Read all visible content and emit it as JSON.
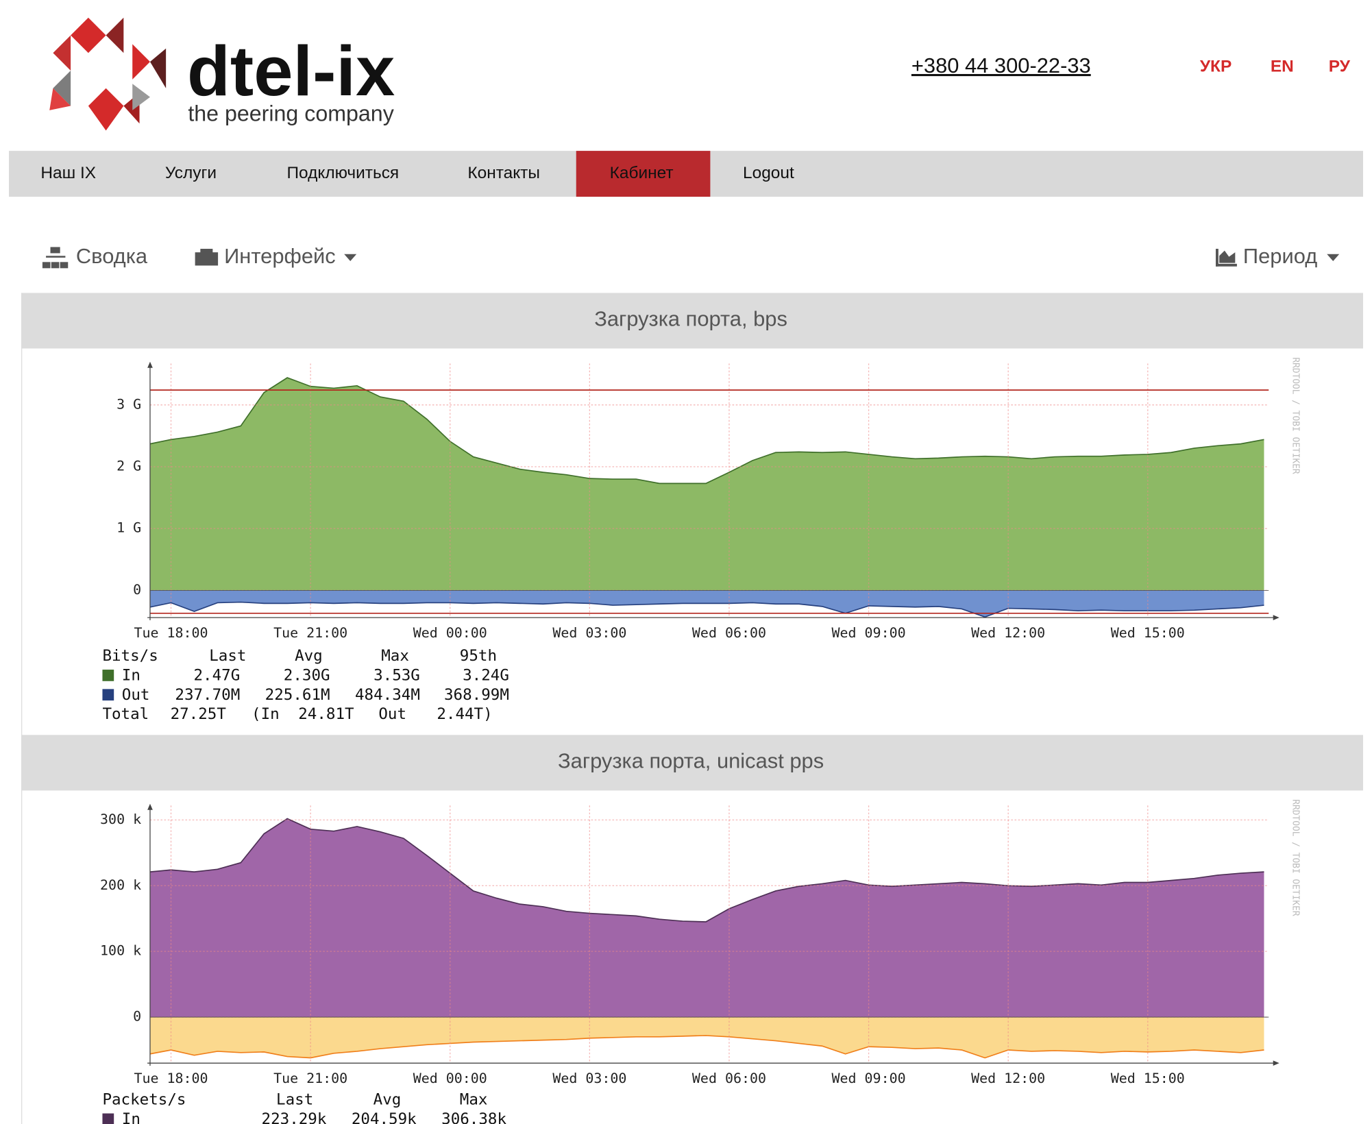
{
  "header": {
    "logo_text": "dtel-ix",
    "tagline": "the peering company",
    "phone": "+380 44 300-22-33",
    "languages": [
      "УКР",
      "EN",
      "РУ"
    ]
  },
  "nav": {
    "items": [
      "Наш IX",
      "Услуги",
      "Подключиться",
      "Контакты",
      "Кабинет",
      "Logout"
    ],
    "active": 4
  },
  "toolbar": {
    "summary": "Сводка",
    "interface": "Интерфейс",
    "period": "Период"
  },
  "chart_data": [
    {
      "type": "area",
      "title": "Загрузка порта, bps",
      "watermark": "RRDTOOL / TOBI OETIKER",
      "x": [
        -0.45,
        0,
        0.5,
        1,
        1.5,
        2,
        2.5,
        3,
        3.5,
        4,
        4.5,
        5,
        5.5,
        6,
        6.5,
        7,
        7.5,
        8,
        8.5,
        9,
        9.5,
        10,
        10.5,
        11,
        11.5,
        12,
        12.5,
        13,
        13.5,
        14,
        14.5,
        15,
        15.5,
        16,
        16.5,
        17,
        17.5,
        18,
        18.5,
        19,
        19.5,
        20,
        20.5,
        21,
        21.5,
        22,
        22.5,
        23,
        23.5
      ],
      "xlim": [
        -0.45,
        23.6
      ],
      "xticks": [
        {
          "value": 0,
          "label": "Tue 18:00"
        },
        {
          "value": 3,
          "label": "Tue 21:00"
        },
        {
          "value": 6,
          "label": "Wed 00:00"
        },
        {
          "value": 9,
          "label": "Wed 03:00"
        },
        {
          "value": 12,
          "label": "Wed 06:00"
        },
        {
          "value": 15,
          "label": "Wed 09:00"
        },
        {
          "value": 18,
          "label": "Wed 12:00"
        },
        {
          "value": 21,
          "label": "Wed 15:00"
        }
      ],
      "ylim": [
        -0.44,
        3.67
      ],
      "yticks": [
        0,
        {
          "value": 1,
          "label": "1 G"
        },
        {
          "value": 2,
          "label": "2 G"
        },
        {
          "value": 3,
          "label": "3 G"
        }
      ],
      "grid": true,
      "series": [
        {
          "name": "In",
          "color": "#8db965",
          "line_color": "#3f6f2a",
          "values": [
            2.37,
            2.44,
            2.49,
            2.56,
            2.66,
            3.2,
            3.44,
            3.3,
            3.27,
            3.31,
            3.13,
            3.06,
            2.77,
            2.41,
            2.16,
            2.06,
            1.96,
            1.91,
            1.87,
            1.81,
            1.8,
            1.8,
            1.73,
            1.73,
            1.73,
            1.91,
            2.1,
            2.23,
            2.24,
            2.23,
            2.24,
            2.2,
            2.16,
            2.13,
            2.14,
            2.16,
            2.17,
            2.16,
            2.13,
            2.16,
            2.17,
            2.17,
            2.19,
            2.2,
            2.23,
            2.3,
            2.34,
            2.37,
            2.44
          ]
        },
        {
          "name": "Out",
          "color": "#7091cf",
          "line_color": "#26407e",
          "values": [
            -0.27,
            -0.2,
            -0.34,
            -0.2,
            -0.19,
            -0.21,
            -0.21,
            -0.2,
            -0.21,
            -0.2,
            -0.21,
            -0.21,
            -0.2,
            -0.2,
            -0.21,
            -0.2,
            -0.21,
            -0.22,
            -0.2,
            -0.21,
            -0.24,
            -0.23,
            -0.22,
            -0.21,
            -0.21,
            -0.21,
            -0.2,
            -0.22,
            -0.22,
            -0.26,
            -0.37,
            -0.25,
            -0.26,
            -0.27,
            -0.26,
            -0.3,
            -0.43,
            -0.29,
            -0.3,
            -0.31,
            -0.33,
            -0.32,
            -0.33,
            -0.33,
            -0.33,
            -0.32,
            -0.3,
            -0.28,
            -0.24
          ]
        }
      ],
      "hrules": [
        3.24,
        -0.37
      ],
      "hrule_color": "#b3261e",
      "legend": {
        "header": [
          "Bits/s",
          "Last",
          "Avg",
          "Max",
          "95th"
        ],
        "rows": [
          [
            "2.47G",
            "2.30G",
            "3.53G",
            "3.24G"
          ],
          [
            "237.70M",
            "225.61M",
            "484.34M",
            "368.99M"
          ]
        ],
        "total": [
          "Total",
          "27.25T",
          "(In",
          "24.81T",
          "Out",
          "2.44T)"
        ]
      }
    },
    {
      "type": "area",
      "title": "Загрузка порта, unicast pps",
      "watermark": "RRDTOOL / TOBI OETIKER",
      "x": [
        -0.45,
        0,
        0.5,
        1,
        1.5,
        2,
        2.5,
        3,
        3.5,
        4,
        4.5,
        5,
        5.5,
        6,
        6.5,
        7,
        7.5,
        8,
        8.5,
        9,
        9.5,
        10,
        10.5,
        11,
        11.5,
        12,
        12.5,
        13,
        13.5,
        14,
        14.5,
        15,
        15.5,
        16,
        16.5,
        17,
        17.5,
        18,
        18.5,
        19,
        19.5,
        20,
        20.5,
        21,
        21.5,
        22,
        22.5,
        23,
        23.5
      ],
      "xlim": [
        -0.45,
        23.6
      ],
      "xticks": [
        {
          "value": 0,
          "label": "Tue 18:00"
        },
        {
          "value": 3,
          "label": "Tue 21:00"
        },
        {
          "value": 6,
          "label": "Wed 00:00"
        },
        {
          "value": 9,
          "label": "Wed 03:00"
        },
        {
          "value": 12,
          "label": "Wed 06:00"
        },
        {
          "value": 15,
          "label": "Wed 09:00"
        },
        {
          "value": 18,
          "label": "Wed 12:00"
        },
        {
          "value": 21,
          "label": "Wed 15:00"
        }
      ],
      "ylim": [
        -70,
        322
      ],
      "yticks": [
        0,
        {
          "value": 100,
          "label": "100 k"
        },
        {
          "value": 200,
          "label": "200 k"
        },
        {
          "value": 300,
          "label": "300 k"
        }
      ],
      "grid": true,
      "series": [
        {
          "name": "In",
          "color": "#a066a8",
          "line_color": "#4d2f55",
          "values": [
            221,
            224,
            221,
            225,
            235,
            279,
            302,
            286,
            283,
            290,
            282,
            272,
            246,
            219,
            192,
            181,
            172,
            168,
            161,
            158,
            156,
            154,
            149,
            146,
            145,
            165,
            179,
            192,
            199,
            203,
            208,
            201,
            199,
            201,
            203,
            205,
            203,
            200,
            199,
            201,
            203,
            201,
            205,
            205,
            208,
            211,
            216,
            219,
            221
          ]
        },
        {
          "color": "#fbd98e",
          "line_color": "#f07f1a",
          "values": [
            -56,
            -50,
            -58,
            -52,
            -54,
            -53,
            -60,
            -62,
            -55,
            -52,
            -48,
            -45,
            -42,
            -40,
            -38,
            -37,
            -36,
            -35,
            -34,
            -32,
            -31,
            -30,
            -30,
            -29,
            -28,
            -30,
            -33,
            -36,
            -40,
            -44,
            -56,
            -45,
            -46,
            -48,
            -47,
            -50,
            -62,
            -50,
            -52,
            -51,
            -52,
            -54,
            -52,
            -53,
            -52,
            -50,
            -52,
            -54,
            -50
          ]
        }
      ],
      "legend": {
        "header": [
          "Packets/s",
          "Last",
          "Avg",
          "Max"
        ],
        "rows": [
          [
            "223.29k",
            "204.59k",
            "306.38k"
          ]
        ]
      }
    }
  ]
}
